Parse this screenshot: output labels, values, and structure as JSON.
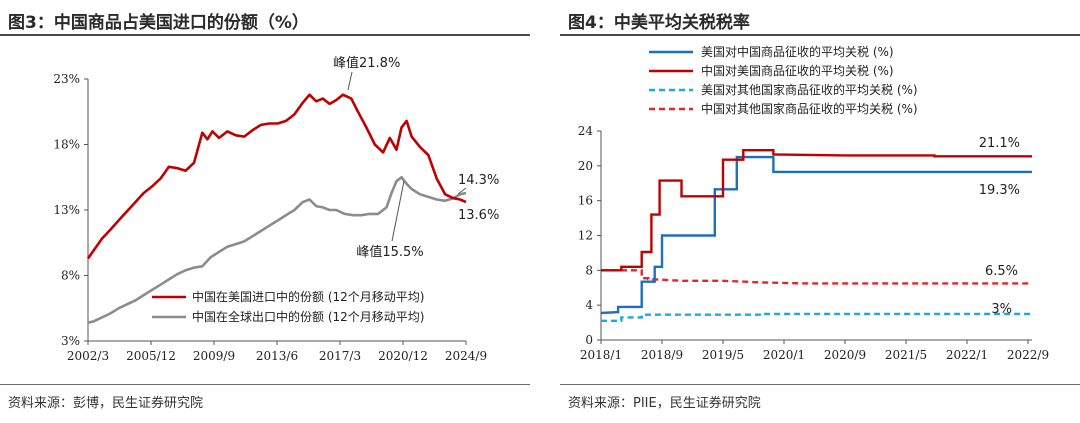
{
  "left": {
    "title": "图3：中国商品占美国进口的份额（%）",
    "source": "资料来源：彭博，民生证券研究院",
    "chart_data": {
      "type": "line",
      "x_ticks": [
        "2002/3",
        "2005/12",
        "2009/9",
        "2013/6",
        "2017/3",
        "2020/12",
        "2024/9"
      ],
      "y_ticks": [
        "3%",
        "8%",
        "13%",
        "18%",
        "23%"
      ],
      "y_tick_values": [
        3,
        8,
        13,
        18,
        23
      ],
      "ylim": [
        3,
        23
      ],
      "grid": false,
      "legend_position": "bottom-right",
      "series": [
        {
          "name": "中国在美国进口中的份额 (12个月移动平均)",
          "color": "#c00000",
          "x": [
            2002.17,
            2002.5,
            2003,
            2003.5,
            2004,
            2004.5,
            2005,
            2005.5,
            2006,
            2006.5,
            2007,
            2007.5,
            2008,
            2008.5,
            2009,
            2009.3,
            2009.6,
            2010,
            2010.5,
            2011,
            2011.5,
            2012,
            2012.5,
            2013,
            2013.5,
            2014,
            2014.5,
            2015,
            2015.4,
            2015.8,
            2016.2,
            2016.6,
            2017,
            2017.4,
            2017.9,
            2018.3,
            2018.8,
            2019.3,
            2019.8,
            2020.2,
            2020.6,
            2020.9,
            2021.2,
            2021.5,
            2022,
            2022.5,
            2023,
            2023.5,
            2024,
            2024.4,
            2024.75
          ],
          "y": [
            9.3,
            9.9,
            10.8,
            11.5,
            12.2,
            12.9,
            13.6,
            14.3,
            14.8,
            15.4,
            16.3,
            16.2,
            16.0,
            16.6,
            18.9,
            18.4,
            19.0,
            18.5,
            19.0,
            18.7,
            18.6,
            19.1,
            19.5,
            19.6,
            19.6,
            19.8,
            20.3,
            21.2,
            21.8,
            21.3,
            21.5,
            21.1,
            21.4,
            21.8,
            21.5,
            20.5,
            19.3,
            18.0,
            17.4,
            18.5,
            17.6,
            19.3,
            19.8,
            18.6,
            17.8,
            17.2,
            15.4,
            14.2,
            13.9,
            13.8,
            13.6
          ]
        },
        {
          "name": "中国在全球出口中的份额 (12个月移动平均)",
          "color": "#8c8c8c",
          "x": [
            2002.17,
            2002.5,
            2003,
            2003.5,
            2004,
            2004.5,
            2005,
            2005.5,
            2006,
            2006.5,
            2007,
            2007.5,
            2008,
            2008.5,
            2009,
            2009.5,
            2010,
            2010.5,
            2011,
            2011.5,
            2012,
            2012.5,
            2013,
            2013.5,
            2014,
            2014.5,
            2015,
            2015.4,
            2015.8,
            2016.2,
            2016.6,
            2017,
            2017.5,
            2018,
            2018.5,
            2019,
            2019.5,
            2020,
            2020.3,
            2020.6,
            2020.9,
            2021.2,
            2021.5,
            2022,
            2022.5,
            2023,
            2023.5,
            2024,
            2024.4,
            2024.75
          ],
          "y": [
            4.4,
            4.5,
            4.8,
            5.1,
            5.5,
            5.8,
            6.1,
            6.5,
            6.9,
            7.3,
            7.7,
            8.1,
            8.4,
            8.6,
            8.7,
            9.4,
            9.8,
            10.2,
            10.4,
            10.6,
            11.0,
            11.4,
            11.8,
            12.2,
            12.6,
            13.0,
            13.6,
            13.8,
            13.3,
            13.2,
            13.0,
            13.0,
            12.7,
            12.6,
            12.6,
            12.7,
            12.7,
            13.2,
            14.3,
            15.2,
            15.5,
            15.0,
            14.6,
            14.2,
            14.0,
            13.8,
            13.7,
            13.9,
            14.2,
            14.3
          ]
        }
      ],
      "annotations": {
        "peak_red": "峰值21.8%",
        "peak_gray": "峰值15.5%",
        "end_gray": "14.3%",
        "end_red": "13.6%"
      }
    }
  },
  "right": {
    "title": "图4：中美平均关税税率",
    "source": "资料来源：PIIE，民生证券研究院",
    "chart_data": {
      "type": "line",
      "x_ticks": [
        "2018/1",
        "2018/9",
        "2019/5",
        "2020/1",
        "2020/9",
        "2021/5",
        "2022/1",
        "2022/9"
      ],
      "y_ticks": [
        "0",
        "4",
        "8",
        "12",
        "16",
        "20",
        "24"
      ],
      "y_tick_values": [
        0,
        4,
        8,
        12,
        16,
        20,
        24
      ],
      "ylim": [
        0,
        24
      ],
      "grid": false,
      "legend_position": "top",
      "series": [
        {
          "name": "美国对中国商品征收的平均关税 (%)",
          "color": "#1f6fbf",
          "dashed": false,
          "x": [
            2018.0,
            2018.21,
            2018.21,
            2018.5,
            2018.5,
            2018.66,
            2018.66,
            2018.75,
            2018.75,
            2019.4,
            2019.4,
            2019.67,
            2019.67,
            2019.95,
            2019.95,
            2020.12,
            2020.12,
            2023.3
          ],
          "y": [
            3.1,
            3.2,
            3.8,
            3.8,
            6.7,
            6.7,
            8.4,
            8.4,
            12.0,
            12.0,
            17.3,
            17.3,
            21.0,
            21.0,
            21.0,
            21.0,
            19.3,
            19.3
          ]
        },
        {
          "name": "中国对美国商品征收的平均关税 (%)",
          "color": "#c00000",
          "dashed": false,
          "x": [
            2018.0,
            2018.25,
            2018.25,
            2018.5,
            2018.5,
            2018.62,
            2018.62,
            2018.72,
            2018.72,
            2018.99,
            2018.99,
            2019.5,
            2019.5,
            2019.75,
            2019.75,
            2020.12,
            2020.12,
            2021.0,
            2022.1,
            2022.1,
            2023.3
          ],
          "y": [
            8.0,
            8.0,
            8.4,
            8.4,
            10.1,
            10.1,
            14.4,
            14.4,
            18.3,
            18.3,
            16.5,
            16.5,
            20.7,
            20.7,
            21.8,
            21.8,
            21.3,
            21.2,
            21.2,
            21.1,
            21.1
          ]
        },
        {
          "name": "美国对其他国家商品征收的平均关税 (%)",
          "color": "#1ea8e0",
          "dashed": true,
          "x": [
            2018.0,
            2018.25,
            2018.25,
            2018.5,
            2018.5,
            2019.0,
            2020.0,
            2020.0,
            2023.3
          ],
          "y": [
            2.2,
            2.2,
            2.6,
            2.6,
            2.9,
            2.9,
            2.9,
            3.0,
            3.0
          ]
        },
        {
          "name": "中国对其他国家商品征收的平均关税 (%)",
          "color": "#e0282c",
          "dashed": true,
          "x": [
            2018.0,
            2018.5,
            2018.5,
            2018.58,
            2018.58,
            2019.0,
            2019.5,
            2020.0,
            2020.5,
            2021.5,
            2022.5,
            2023.3
          ],
          "y": [
            8.0,
            8.0,
            7.1,
            7.1,
            7.0,
            6.8,
            6.8,
            6.6,
            6.5,
            6.5,
            6.5,
            6.5
          ]
        }
      ],
      "annotations": {
        "red_end": "21.1%",
        "blue_end": "19.3%",
        "red_dash_end": "6.5%",
        "blue_dash_end": "3%"
      }
    }
  }
}
